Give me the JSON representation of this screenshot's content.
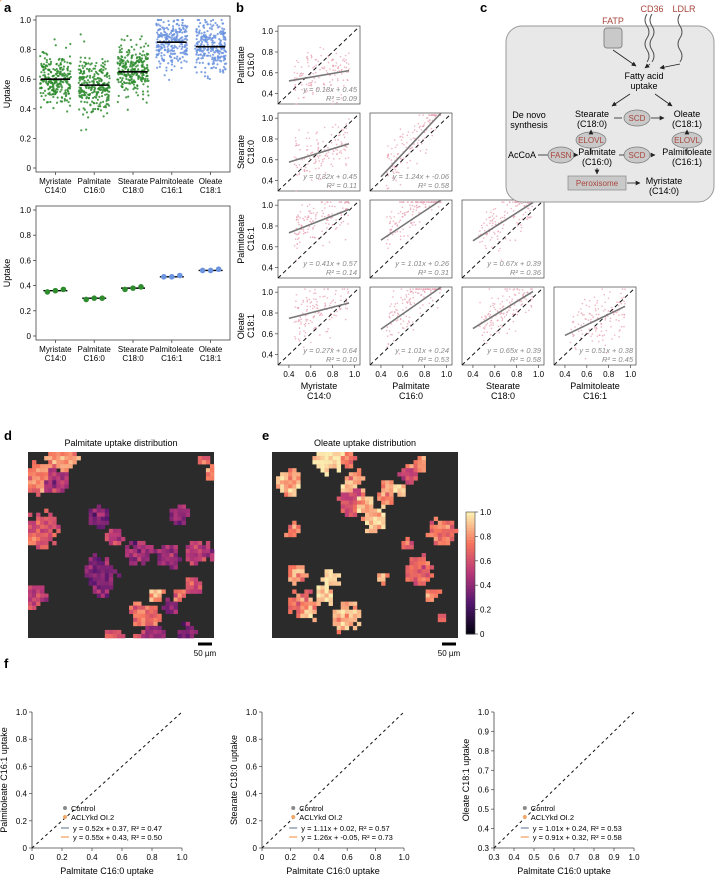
{
  "figure": {
    "panel_labels": {
      "a": "a",
      "b": "b",
      "c": "c",
      "d": "d",
      "e": "e",
      "f": "f"
    }
  },
  "colors": {
    "green": "#2e8b2e",
    "blue": "#6b93de",
    "pink": "#e9a3b4",
    "gray": "#8a8a8a",
    "orange": "#f2a869",
    "cell_bg": "#e8e8e8",
    "heat_bg": "#2b2b2b",
    "accent_red": "#a8463c"
  },
  "chart_data": [
    {
      "id": "a_top",
      "type": "scatter",
      "ylabel": "Uptake",
      "ylim": [
        0,
        1
      ],
      "yticks": [
        "0",
        "0.2",
        "0.4",
        "0.6",
        "0.8",
        "1.0"
      ],
      "categories": [
        [
          "Myristate",
          "C14:0"
        ],
        [
          "Palmitate",
          "C16:0"
        ],
        [
          "Stearate",
          "C18:0"
        ],
        [
          "Palmitoleate",
          "C16:1"
        ],
        [
          "Oleate",
          "C18:1"
        ]
      ],
      "medians": [
        0.6,
        0.56,
        0.65,
        0.85,
        0.82
      ],
      "point_colors": [
        "green",
        "green",
        "green",
        "blue",
        "blue"
      ]
    },
    {
      "id": "a_bottom",
      "type": "scatter",
      "ylabel": "Uptake",
      "ylim": [
        0,
        1
      ],
      "yticks": [
        "0",
        "0.2",
        "0.4",
        "0.6",
        "0.8",
        "1.0"
      ],
      "categories": [
        [
          "Myristate",
          "C14:0"
        ],
        [
          "Palmitate",
          "C16:0"
        ],
        [
          "Stearate",
          "C18:0"
        ],
        [
          "Palmitoleate",
          "C16:1"
        ],
        [
          "Oleate",
          "C18:1"
        ]
      ],
      "means": [
        0.36,
        0.3,
        0.38,
        0.47,
        0.52
      ],
      "replicates": [
        [
          0.35,
          0.36,
          0.37
        ],
        [
          0.29,
          0.3,
          0.3
        ],
        [
          0.37,
          0.38,
          0.39
        ],
        [
          0.47,
          0.47,
          0.48
        ],
        [
          0.52,
          0.52,
          0.53
        ]
      ]
    },
    {
      "id": "b",
      "type": "scatter",
      "xlabels": [
        [
          "Myristate",
          "C14:0"
        ],
        [
          "Palmitate",
          "C16:0"
        ],
        [
          "Stearate",
          "C18:0"
        ],
        [
          "Palmitoleate",
          "C16:1"
        ]
      ],
      "ylabels": [
        [
          "Palmitate",
          "C16:0"
        ],
        [
          "Stearate",
          "C18:0"
        ],
        [
          "Palmitoleate",
          "C16:1"
        ],
        [
          "Oleate",
          "C18:1"
        ]
      ],
      "ticks": [
        "0.4",
        "0.6",
        "0.8",
        "1.0"
      ],
      "cells": [
        {
          "row": 0,
          "col": 0,
          "slope": 0.18,
          "intercept": 0.45,
          "fit": "y = 0.18x + 0.45",
          "r2": "R² = 0.09"
        },
        {
          "row": 1,
          "col": 0,
          "slope": 0.32,
          "intercept": 0.45,
          "fit": "y = 0.32x + 0.45",
          "r2": "R² = 0.11"
        },
        {
          "row": 1,
          "col": 1,
          "slope": 1.24,
          "intercept": -0.06,
          "fit": "y = 1.24x + -0.06",
          "r2": "R² = 0.58"
        },
        {
          "row": 2,
          "col": 0,
          "slope": 0.41,
          "intercept": 0.57,
          "fit": "y = 0.41x + 0.57",
          "r2": "R² = 0.14"
        },
        {
          "row": 2,
          "col": 1,
          "slope": 1.01,
          "intercept": 0.26,
          "fit": "y = 1.01x + 0.26",
          "r2": "R² = 0.31"
        },
        {
          "row": 2,
          "col": 2,
          "slope": 0.67,
          "intercept": 0.39,
          "fit": "y = 0.67x + 0.39",
          "r2": "R² = 0.36"
        },
        {
          "row": 3,
          "col": 0,
          "slope": 0.27,
          "intercept": 0.64,
          "fit": "y = 0.27x + 0.64",
          "r2": "R² = 0.10"
        },
        {
          "row": 3,
          "col": 1,
          "slope": 1.01,
          "intercept": 0.24,
          "fit": "y = 1.01x + 0.24",
          "r2": "R² = 0.53"
        },
        {
          "row": 3,
          "col": 2,
          "slope": 0.65,
          "intercept": 0.39,
          "fit": "y = 0.65x + 0.39",
          "r2": "R² = 0.58"
        },
        {
          "row": 3,
          "col": 3,
          "slope": 0.51,
          "intercept": 0.38,
          "fit": "y = 0.51x + 0.38",
          "r2": "R² = 0.45"
        }
      ]
    },
    {
      "id": "d",
      "type": "heatmap",
      "title": "Palmitate uptake distribution",
      "scalebar": "50 µm"
    },
    {
      "id": "e",
      "type": "heatmap",
      "title": "Oleate uptake distribution",
      "scalebar": "50 µm",
      "colorbar_ticks": [
        "0",
        "0.2",
        "0.4",
        "0.6",
        "0.8",
        "1.0"
      ]
    },
    {
      "id": "f1",
      "type": "scatter",
      "xlabel": "Palmitate C16:0 uptake",
      "ylabel": "Palmitoleate C16:1 uptake",
      "xlim": [
        0,
        1
      ],
      "ylim": [
        0,
        1
      ],
      "xticks": [
        "0",
        "0.2",
        "0.4",
        "0.6",
        "0.8",
        "1.0"
      ],
      "yticks": [
        "0",
        "0.2",
        "0.4",
        "0.6",
        "0.8",
        "1.0"
      ],
      "series": [
        {
          "name": "Control",
          "slope": 0.52,
          "intercept": 0.37,
          "fit": "y = 0.52x + 0.37, R² = 0.47"
        },
        {
          "name": "ACLYkd OI.2",
          "slope": 0.55,
          "intercept": 0.43,
          "fit": "y = 0.55x + 0.43, R² = 0.50"
        }
      ]
    },
    {
      "id": "f2",
      "type": "scatter",
      "xlabel": "Palmitate C16:0 uptake",
      "ylabel": "Stearate C18:0 uptake",
      "xlim": [
        0,
        1
      ],
      "ylim": [
        0,
        1
      ],
      "xticks": [
        "0",
        "0.2",
        "0.4",
        "0.6",
        "0.8",
        "1.0"
      ],
      "yticks": [
        "0",
        "0.2",
        "0.4",
        "0.6",
        "0.8",
        "1.0"
      ],
      "series": [
        {
          "name": "Control",
          "slope": 1.11,
          "intercept": 0.02,
          "fit": "y = 1.11x + 0.02, R² = 0.57"
        },
        {
          "name": "ACLYkd OI.2",
          "slope": 1.26,
          "intercept": -0.05,
          "fit": "y = 1.26x + -0.05, R² = 0.73"
        }
      ]
    },
    {
      "id": "f3",
      "type": "scatter",
      "xlabel": "Palmitate C16:0 uptake",
      "ylabel": "Oleate C18:1 uptake",
      "xlim": [
        0.3,
        1
      ],
      "ylim": [
        0.3,
        1
      ],
      "xticks": [
        "0.3",
        "0.4",
        "0.5",
        "0.6",
        "0.7",
        "0.8",
        "0.9",
        "1.0"
      ],
      "yticks": [
        "0.3",
        "0.4",
        "0.5",
        "0.6",
        "0.7",
        "0.8",
        "0.9",
        "1.0"
      ],
      "series": [
        {
          "name": "Control",
          "slope": 1.01,
          "intercept": 0.24,
          "fit": "y = 1.01x + 0.24, R² = 0.53"
        },
        {
          "name": "ACLYkd OI.2",
          "slope": 0.91,
          "intercept": 0.32,
          "fit": "y = 0.91x + 0.32, R² = 0.58"
        }
      ]
    }
  ],
  "diagram": {
    "transporters": [
      "FATP",
      "CD36",
      "LDLR"
    ],
    "fa_uptake": [
      "Fatty acid",
      "uptake"
    ],
    "de_novo": [
      "De novo",
      "synthesis"
    ],
    "acoa": "AcCoA",
    "enzymes": {
      "fasn": "FASN",
      "elovl1": "ELOVL",
      "elovl2": "ELOVL",
      "scd1": "SCD",
      "scd2": "SCD",
      "perox": "Peroxisome"
    },
    "stearate": [
      "Stearate",
      "(C18:0)"
    ],
    "oleate": [
      "Oleate",
      "(C18:1)"
    ],
    "palmitate": [
      "Palmitate",
      "(C16:0)"
    ],
    "palmitoleate": [
      "Palmitoleate",
      "(C16:1)"
    ],
    "myristate": [
      "Myristate",
      "(C14:0)"
    ]
  }
}
